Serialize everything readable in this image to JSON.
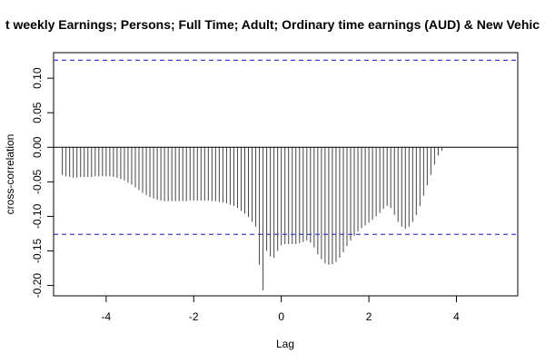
{
  "chart_data": {
    "type": "bar",
    "title": "t weekly Earnings; Persons; Full Time; Adult; Ordinary time earnings (AUD) & New Vehic",
    "xlabel": "Lag",
    "ylabel": "cross-correlation",
    "xlim": [
      -5.2,
      5.4
    ],
    "ylim": [
      -0.215,
      0.137
    ],
    "x_ticks": [
      -4,
      -2,
      0,
      2,
      4
    ],
    "x_tick_labels": [
      "-4",
      "-2",
      "0",
      "2",
      "4"
    ],
    "y_ticks": [
      -0.2,
      -0.15,
      -0.1,
      -0.05,
      0.0,
      0.05,
      0.1
    ],
    "y_tick_labels": [
      "-0.20",
      "-0.15",
      "-0.10",
      "-0.05",
      "0.00",
      "0.05",
      "0.10"
    ],
    "confidence_bound": 0.126,
    "colors": {
      "bars": "#444444",
      "zero_line": "#000000",
      "confidence": "#4040d0"
    },
    "lag_start": -5.0,
    "lag_step": 0.0833333,
    "values": [
      -0.04,
      -0.042,
      -0.043,
      -0.044,
      -0.044,
      -0.043,
      -0.043,
      -0.043,
      -0.043,
      -0.042,
      -0.042,
      -0.042,
      -0.042,
      -0.042,
      -0.043,
      -0.044,
      -0.046,
      -0.048,
      -0.051,
      -0.054,
      -0.058,
      -0.062,
      -0.066,
      -0.069,
      -0.072,
      -0.074,
      -0.076,
      -0.077,
      -0.078,
      -0.078,
      -0.078,
      -0.078,
      -0.078,
      -0.078,
      -0.078,
      -0.077,
      -0.077,
      -0.077,
      -0.077,
      -0.077,
      -0.077,
      -0.078,
      -0.078,
      -0.079,
      -0.08,
      -0.081,
      -0.083,
      -0.085,
      -0.088,
      -0.092,
      -0.096,
      -0.101,
      -0.108,
      -0.115,
      -0.17,
      -0.207,
      -0.15,
      -0.158,
      -0.16,
      -0.15,
      -0.142,
      -0.14,
      -0.14,
      -0.14,
      -0.14,
      -0.139,
      -0.137,
      -0.135,
      -0.138,
      -0.145,
      -0.155,
      -0.162,
      -0.168,
      -0.17,
      -0.169,
      -0.166,
      -0.16,
      -0.152,
      -0.143,
      -0.135,
      -0.128,
      -0.122,
      -0.117,
      -0.113,
      -0.109,
      -0.105,
      -0.1,
      -0.095,
      -0.089,
      -0.085,
      -0.088,
      -0.098,
      -0.108,
      -0.115,
      -0.118,
      -0.115,
      -0.108,
      -0.098,
      -0.085,
      -0.07,
      -0.055,
      -0.04,
      -0.025,
      -0.012,
      -0.005
    ]
  }
}
